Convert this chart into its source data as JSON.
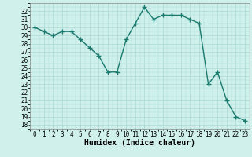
{
  "x": [
    0,
    1,
    2,
    3,
    4,
    5,
    6,
    7,
    8,
    9,
    10,
    11,
    12,
    13,
    14,
    15,
    16,
    17,
    18,
    19,
    20,
    21,
    22,
    23
  ],
  "y": [
    30.0,
    29.5,
    29.0,
    29.5,
    29.5,
    28.5,
    27.5,
    26.5,
    24.5,
    24.5,
    28.5,
    30.5,
    32.5,
    31.0,
    31.5,
    31.5,
    31.5,
    31.0,
    30.5,
    23.0,
    24.5,
    21.0,
    19.0,
    18.5
  ],
  "line_color": "#1a7a6e",
  "bg_color": "#cff0eb",
  "grid_color": "#aad8d3",
  "xlabel": "Humidex (Indice chaleur)",
  "ylim": [
    17.5,
    33.0
  ],
  "xlim": [
    -0.5,
    23.5
  ],
  "yticks": [
    18,
    19,
    20,
    21,
    22,
    23,
    24,
    25,
    26,
    27,
    28,
    29,
    30,
    31,
    32
  ],
  "xticks": [
    0,
    1,
    2,
    3,
    4,
    5,
    6,
    7,
    8,
    9,
    10,
    11,
    12,
    13,
    14,
    15,
    16,
    17,
    18,
    19,
    20,
    21,
    22,
    23
  ],
  "marker": "+",
  "linewidth": 1.0,
  "markersize": 4,
  "markeredgewidth": 1.0,
  "xlabel_fontsize": 7,
  "tick_fontsize": 5.5
}
